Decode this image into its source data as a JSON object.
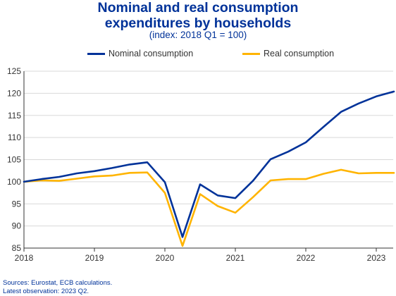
{
  "chart_data": {
    "type": "line",
    "title": "Nominal and real consumption expenditures by households",
    "title_lines": [
      "Nominal and real consumption",
      "expenditures by households"
    ],
    "subtitle": "(index: 2018 Q1 = 100)",
    "xlabel": "",
    "ylabel": "",
    "x_tick_labels": [
      "2018",
      "2019",
      "2020",
      "2021",
      "2022",
      "2023"
    ],
    "ylim": [
      85,
      125
    ],
    "y_ticks": [
      85,
      90,
      95,
      100,
      105,
      110,
      115,
      120,
      125
    ],
    "legend_position": "top-center",
    "x": [
      "2018 Q1",
      "2018 Q2",
      "2018 Q3",
      "2018 Q4",
      "2019 Q1",
      "2019 Q2",
      "2019 Q3",
      "2019 Q4",
      "2020 Q1",
      "2020 Q2",
      "2020 Q3",
      "2020 Q4",
      "2021 Q1",
      "2021 Q2",
      "2021 Q3",
      "2021 Q4",
      "2022 Q1",
      "2022 Q2",
      "2022 Q3",
      "2022 Q4",
      "2023 Q1",
      "2023 Q2"
    ],
    "series": [
      {
        "name": "Nominal consumption",
        "color": "#003299",
        "values": [
          100.0,
          100.6,
          101.1,
          101.9,
          102.4,
          103.1,
          103.9,
          104.4,
          99.9,
          87.5,
          99.4,
          96.9,
          96.3,
          100.2,
          105.1,
          106.8,
          108.9,
          112.4,
          115.8,
          117.7,
          119.3,
          120.4
        ]
      },
      {
        "name": "Real consumption",
        "color": "#FFB400",
        "values": [
          100.0,
          100.3,
          100.2,
          100.7,
          101.2,
          101.4,
          102.0,
          102.1,
          97.5,
          85.5,
          97.2,
          94.5,
          93.0,
          96.5,
          100.3,
          100.6,
          100.6,
          101.8,
          102.7,
          101.9,
          102.0,
          102.0
        ]
      }
    ]
  },
  "footnotes": {
    "sources": "Sources: Eurostat, ECB calculations.",
    "latest": "Latest observation: 2023 Q2."
  }
}
